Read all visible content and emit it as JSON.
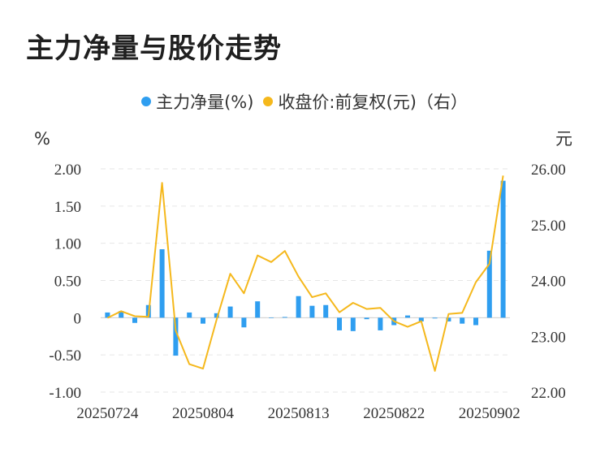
{
  "title": "主力净量与股价走势",
  "legend": [
    {
      "label": "主力净量(%)",
      "color": "#2f9ef0"
    },
    {
      "label": "收盘价:前复权(元)（右）",
      "color": "#f5b81c"
    }
  ],
  "chart_data": {
    "type": "bar+line",
    "left_axis": {
      "unit": "%",
      "min": -1.0,
      "max": 2.0,
      "ticks": [
        "2.00",
        "1.50",
        "1.00",
        "0.50",
        "0",
        "-0.50",
        "-1.00"
      ],
      "tick_values": [
        2.0,
        1.5,
        1.0,
        0.5,
        0,
        -0.5,
        -1.0
      ]
    },
    "right_axis": {
      "unit": "元",
      "min": 22.0,
      "max": 26.0,
      "ticks": [
        "26.00",
        "25.00",
        "24.00",
        "23.00",
        "22.00"
      ],
      "tick_values": [
        26,
        25,
        24,
        23,
        22
      ]
    },
    "x_tick_labels": [
      "20250724",
      "20250804",
      "20250813",
      "20250822",
      "20250902"
    ],
    "x_tick_indices": [
      0,
      7,
      14,
      21,
      28
    ],
    "series": [
      {
        "name": "主力净量(%)",
        "type": "bar",
        "color": "#2f9ef0",
        "values": [
          0.07,
          0.09,
          -0.07,
          0.17,
          0.92,
          -0.51,
          0.07,
          -0.08,
          0.06,
          0.15,
          -0.13,
          0.22,
          0.0,
          0.01,
          0.29,
          0.16,
          0.17,
          -0.17,
          -0.18,
          -0.02,
          -0.17,
          -0.1,
          0.03,
          -0.05,
          -0.01,
          -0.05,
          -0.08,
          -0.1,
          0.9,
          1.84
        ]
      },
      {
        "name": "收盘价:前复权(元)（右）",
        "type": "line",
        "color": "#f5b81c",
        "values": [
          23.33,
          23.45,
          23.36,
          23.35,
          25.75,
          23.1,
          22.5,
          22.42,
          23.3,
          24.12,
          23.77,
          24.45,
          24.33,
          24.53,
          24.07,
          23.7,
          23.77,
          23.43,
          23.6,
          23.49,
          23.51,
          23.27,
          23.17,
          23.27,
          22.38,
          23.4,
          23.42,
          23.97,
          24.3,
          25.88
        ]
      }
    ],
    "grid": true
  }
}
